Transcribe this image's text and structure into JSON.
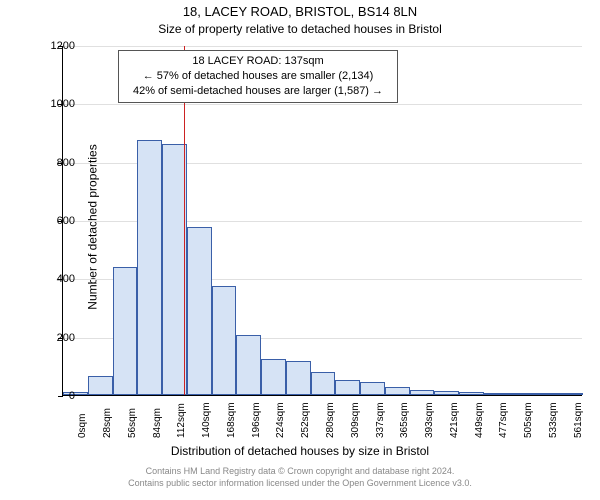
{
  "title_main": "18, LACEY ROAD, BRISTOL, BS14 8LN",
  "title_sub": "Size of property relative to detached houses in Bristol",
  "y_axis_label": "Number of detached properties",
  "x_axis_label": "Distribution of detached houses by size in Bristol",
  "footer_line1": "Contains HM Land Registry data © Crown copyright and database right 2024.",
  "footer_line2": "Contains public sector information licensed under the Open Government Licence v3.0.",
  "annotation": {
    "line1": "18 LACEY ROAD: 137sqm",
    "line2": "← 57% of detached houses are smaller (2,134)",
    "line3": "42% of semi-detached houses are larger (1,587) →"
  },
  "chart": {
    "type": "histogram",
    "bar_fill": "#d6e3f5",
    "bar_stroke": "#3a5fa8",
    "marker_color": "#cc2222",
    "marker_x_value": 137,
    "background_color": "#ffffff",
    "grid_color": "#e0e0e0",
    "ymax": 1200,
    "ytick_step": 200,
    "x_categories": [
      "0sqm",
      "28sqm",
      "56sqm",
      "84sqm",
      "112sqm",
      "140sqm",
      "168sqm",
      "196sqm",
      "224sqm",
      "252sqm",
      "280sqm",
      "309sqm",
      "337sqm",
      "365sqm",
      "393sqm",
      "421sqm",
      "449sqm",
      "477sqm",
      "505sqm",
      "533sqm",
      "561sqm"
    ],
    "values": [
      12,
      65,
      440,
      875,
      860,
      575,
      375,
      205,
      125,
      115,
      80,
      52,
      45,
      28,
      18,
      15,
      12,
      5,
      8,
      5,
      3
    ]
  }
}
